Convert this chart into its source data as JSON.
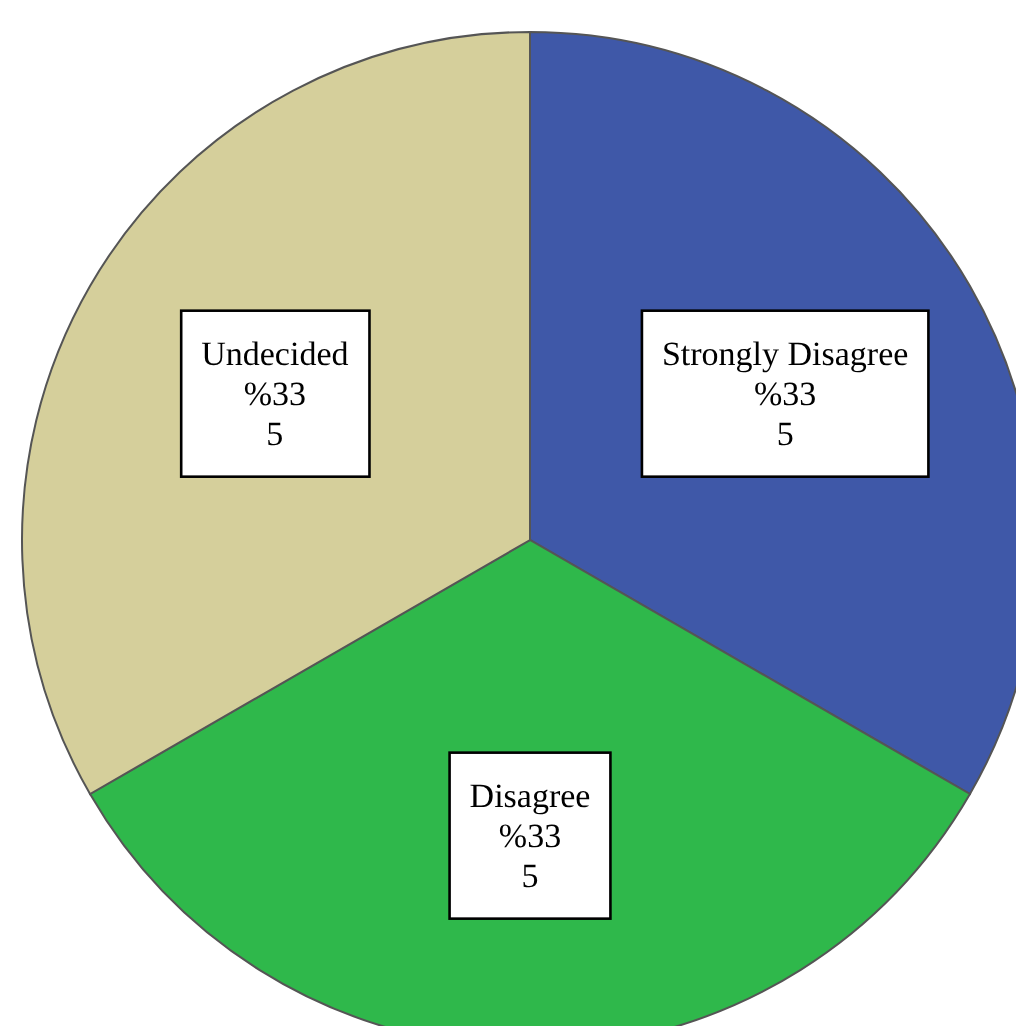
{
  "chart_data": {
    "type": "pie",
    "categories": [
      "Strongly Disagree",
      "Disagree",
      "Undecided"
    ],
    "values": [
      5,
      5,
      5
    ],
    "colors": [
      "#3f58a8",
      "#2fb84b",
      "#d5cf9b"
    ],
    "value_labels": [
      "%33\n5",
      "%33\n5",
      "%33\n5"
    ]
  }
}
